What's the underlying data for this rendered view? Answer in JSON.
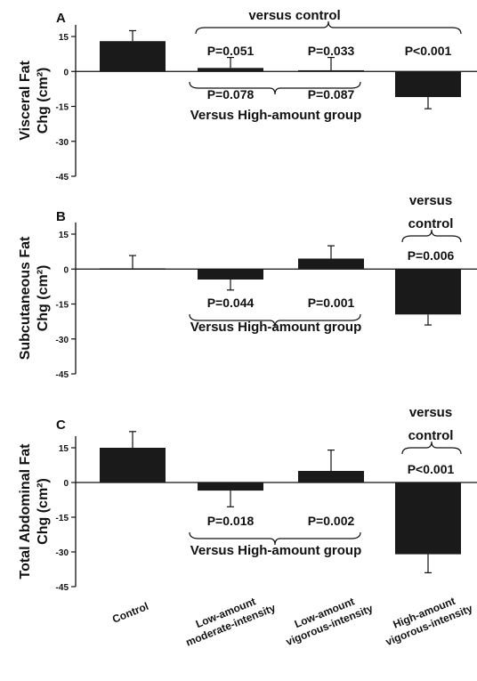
{
  "chart_data": {
    "type": "bar",
    "categories": [
      "Control",
      "Low-amount moderate-intensity",
      "Low-amount vigorous-intensity",
      "High-amount vigorous-intensity"
    ],
    "category_lines": [
      [
        "Control"
      ],
      [
        "Low-amount",
        "moderate-intensity"
      ],
      [
        "Low-amount",
        "vigorous-intensity"
      ],
      [
        "High-amount",
        "vigorous-intensity"
      ]
    ],
    "yticks": [
      15,
      0,
      -15,
      -30,
      -45
    ],
    "ylim": [
      -45,
      20
    ],
    "panels": [
      {
        "letter": "A",
        "ylabel_lines": [
          "Visceral Fat",
          "Chg (cm²)"
        ],
        "values": [
          13,
          1.5,
          0.5,
          -11
        ],
        "error": [
          4.5,
          4.5,
          5.5,
          5
        ],
        "annotations": [
          {
            "text": "versus control",
            "class": "gtxt"
          },
          {
            "text": "P=0.051",
            "class": "ptxt"
          },
          {
            "text": "P=0.033",
            "class": "ptxt"
          },
          {
            "text": "P<0.001",
            "class": "ptxt"
          },
          {
            "text": "P=0.078",
            "class": "ptxt"
          },
          {
            "text": "P=0.087",
            "class": "ptxt"
          },
          {
            "text": "Versus High-amount group",
            "class": "gtxt"
          }
        ]
      },
      {
        "letter": "B",
        "ylabel_lines": [
          "Subcutaneous Fat",
          "Chg (cm²)"
        ],
        "values": [
          0.3,
          -4.5,
          4.5,
          -19.5
        ],
        "error": [
          5.5,
          4.5,
          5.5,
          4.5
        ],
        "annotations": [
          {
            "text": "versus",
            "class": "gtxt"
          },
          {
            "text": "control",
            "class": "gtxt"
          },
          {
            "text": "P=0.006",
            "class": "ptxt"
          },
          {
            "text": "P=0.044",
            "class": "ptxt"
          },
          {
            "text": "P=0.001",
            "class": "ptxt"
          },
          {
            "text": "Versus High-amount group",
            "class": "gtxt"
          }
        ]
      },
      {
        "letter": "C",
        "ylabel_lines": [
          "Total Abdominal Fat",
          "Chg (cm²)"
        ],
        "values": [
          15,
          -3.5,
          5,
          -31
        ],
        "error": [
          7,
          7,
          9,
          8
        ],
        "annotations": [
          {
            "text": "versus",
            "class": "gtxt"
          },
          {
            "text": "control",
            "class": "gtxt"
          },
          {
            "text": "P<0.001",
            "class": "ptxt"
          },
          {
            "text": "P=0.018",
            "class": "ptxt"
          },
          {
            "text": "P=0.002",
            "class": "ptxt"
          },
          {
            "text": "Versus High-amount group",
            "class": "gtxt"
          }
        ]
      }
    ]
  }
}
